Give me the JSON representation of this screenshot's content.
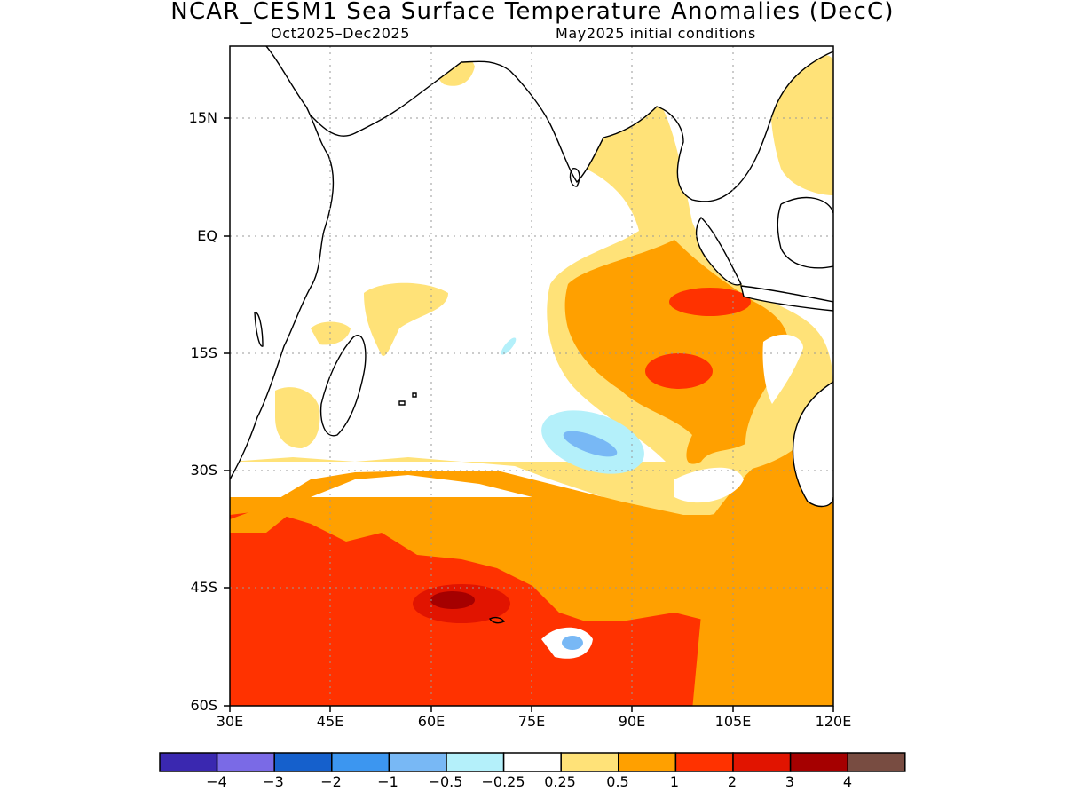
{
  "title": "NCAR_CESM1 Sea Surface Temperature Anomalies (DecC)",
  "subtitle_left": "Oct2025–Dec2025",
  "subtitle_right": "May2025 initial conditions",
  "map": {
    "region": "Indian Ocean",
    "lon_range": [
      30,
      120
    ],
    "lat_range": [
      -60,
      24
    ],
    "graticule": "dotted grey",
    "y_ticks": [
      "15N",
      "EQ",
      "15S",
      "30S",
      "45S",
      "60S"
    ],
    "x_ticks": [
      "30E",
      "45E",
      "60E",
      "75E",
      "90E",
      "105E",
      "120E"
    ]
  },
  "colorbar": {
    "boundaries": [
      "−4",
      "−3",
      "−2",
      "−1",
      "−0.5",
      "−0.25",
      "0.25",
      "0.5",
      "1",
      "2",
      "3",
      "4"
    ],
    "colors": [
      "#3a28b0",
      "#7a6ae6",
      "#1560cc",
      "#3c96f0",
      "#78b8f5",
      "#b4f0fa",
      "#ffffff",
      "#ffe278",
      "#ffa000",
      "#ff3200",
      "#e11400",
      "#a50000",
      "#784c41"
    ]
  },
  "field_colors": {
    "positive_0_25": "#ffe278",
    "positive_0_5": "#ffa000",
    "positive_1": "#ff3200",
    "positive_2": "#e11400",
    "positive_3": "#a50000",
    "negative_0_25": "#b4f0fa",
    "negative_0_5": "#78b8f5",
    "land": "#ffffff",
    "coastline": "#000000"
  }
}
